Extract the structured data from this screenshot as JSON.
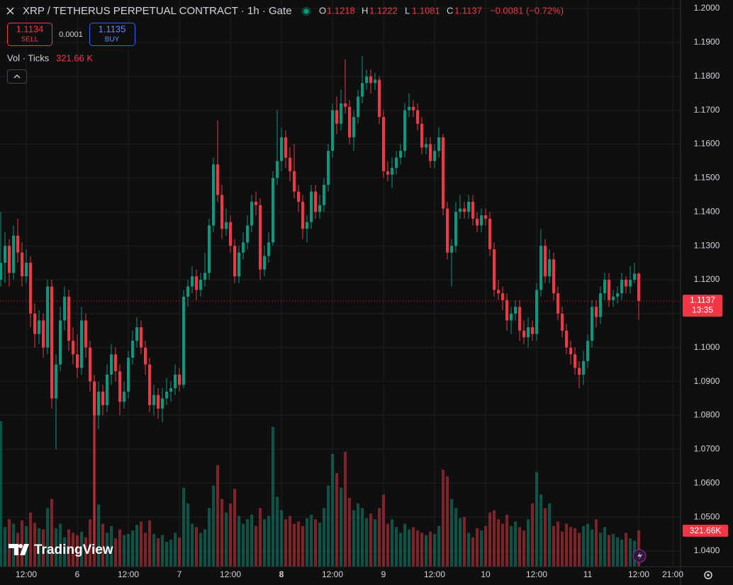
{
  "header": {
    "symbol": "XRP / TETHERUS PERPETUAL CONTRACT · 1h · Gate",
    "o_label": "O",
    "open": "1.1218",
    "h_label": "H",
    "high": "1.1222",
    "l_label": "L",
    "low": "1.1081",
    "c_label": "C",
    "close": "1.1137",
    "change": "−0.0081 (−0.72%)"
  },
  "trade": {
    "sell_price": "1.1134",
    "sell": "SELL",
    "spread": "0.0001",
    "buy_price": "1.1135",
    "buy": "BUY"
  },
  "volume_legend": {
    "label": "Vol · Ticks",
    "value": "321.66 K"
  },
  "brand": "TradingView",
  "chart_data": {
    "type": "candlestick",
    "up_color": "#089981",
    "down_color": "#f23645",
    "grid": true,
    "candles": [
      [
        1.12,
        1.14,
        1.118,
        1.125
      ],
      [
        1.125,
        1.134,
        1.119,
        1.13
      ],
      [
        1.13,
        1.132,
        1.118,
        1.122
      ],
      [
        1.122,
        1.136,
        1.12,
        1.133
      ],
      [
        1.133,
        1.138,
        1.125,
        1.128
      ],
      [
        1.128,
        1.131,
        1.118,
        1.121
      ],
      [
        1.121,
        1.129,
        1.119,
        1.125
      ],
      [
        1.125,
        1.127,
        1.106,
        1.11
      ],
      [
        1.11,
        1.113,
        1.1,
        1.104
      ],
      [
        1.104,
        1.111,
        1.101,
        1.108
      ],
      [
        1.108,
        1.11,
        1.097,
        1.1
      ],
      [
        1.1,
        1.12,
        1.098,
        1.118
      ],
      [
        1.118,
        1.12,
        1.082,
        1.085
      ],
      [
        1.085,
        1.098,
        1.07,
        1.095
      ],
      [
        1.095,
        1.112,
        1.093,
        1.108
      ],
      [
        1.108,
        1.118,
        1.105,
        1.115
      ],
      [
        1.115,
        1.117,
        1.099,
        1.102
      ],
      [
        1.102,
        1.106,
        1.095,
        1.098
      ],
      [
        1.098,
        1.104,
        1.091,
        1.094
      ],
      [
        1.094,
        1.112,
        1.092,
        1.108
      ],
      [
        1.108,
        1.11,
        1.097,
        1.1
      ],
      [
        1.1,
        1.102,
        1.087,
        1.09
      ],
      [
        1.09,
        1.092,
        1.04,
        1.08
      ],
      [
        1.08,
        1.09,
        1.076,
        1.087
      ],
      [
        1.087,
        1.089,
        1.08,
        1.083
      ],
      [
        1.083,
        1.095,
        1.081,
        1.092
      ],
      [
        1.092,
        1.101,
        1.089,
        1.098
      ],
      [
        1.098,
        1.1,
        1.09,
        1.093
      ],
      [
        1.093,
        1.095,
        1.08,
        1.084
      ],
      [
        1.084,
        1.09,
        1.082,
        1.087
      ],
      [
        1.087,
        1.099,
        1.085,
        1.097
      ],
      [
        1.097,
        1.105,
        1.095,
        1.102
      ],
      [
        1.102,
        1.109,
        1.1,
        1.106
      ],
      [
        1.106,
        1.108,
        1.098,
        1.1
      ],
      [
        1.1,
        1.102,
        1.092,
        1.095
      ],
      [
        1.095,
        1.097,
        1.081,
        1.083
      ],
      [
        1.083,
        1.089,
        1.08,
        1.086
      ],
      [
        1.086,
        1.088,
        1.079,
        1.082
      ],
      [
        1.082,
        1.088,
        1.078,
        1.085
      ],
      [
        1.085,
        1.091,
        1.083,
        1.087
      ],
      [
        1.087,
        1.09,
        1.084,
        1.088
      ],
      [
        1.088,
        1.095,
        1.086,
        1.092
      ],
      [
        1.092,
        1.094,
        1.087,
        1.089
      ],
      [
        1.089,
        1.117,
        1.088,
        1.115
      ],
      [
        1.115,
        1.12,
        1.112,
        1.118
      ],
      [
        1.118,
        1.124,
        1.116,
        1.121
      ],
      [
        1.121,
        1.123,
        1.114,
        1.117
      ],
      [
        1.117,
        1.122,
        1.115,
        1.12
      ],
      [
        1.12,
        1.128,
        1.118,
        1.122
      ],
      [
        1.122,
        1.138,
        1.12,
        1.136
      ],
      [
        1.136,
        1.156,
        1.134,
        1.154
      ],
      [
        1.154,
        1.167,
        1.143,
        1.145
      ],
      [
        1.145,
        1.148,
        1.132,
        1.135
      ],
      [
        1.135,
        1.141,
        1.133,
        1.137
      ],
      [
        1.137,
        1.139,
        1.128,
        1.13
      ],
      [
        1.13,
        1.132,
        1.119,
        1.121
      ],
      [
        1.121,
        1.13,
        1.119,
        1.128
      ],
      [
        1.128,
        1.134,
        1.126,
        1.131
      ],
      [
        1.131,
        1.139,
        1.129,
        1.136
      ],
      [
        1.136,
        1.145,
        1.134,
        1.143
      ],
      [
        1.143,
        1.146,
        1.139,
        1.142
      ],
      [
        1.142,
        1.144,
        1.12,
        1.123
      ],
      [
        1.123,
        1.13,
        1.121,
        1.127
      ],
      [
        1.127,
        1.134,
        1.125,
        1.131
      ],
      [
        1.131,
        1.152,
        1.13,
        1.15
      ],
      [
        1.15,
        1.17,
        1.148,
        1.155
      ],
      [
        1.155,
        1.165,
        1.152,
        1.162
      ],
      [
        1.162,
        1.164,
        1.153,
        1.156
      ],
      [
        1.156,
        1.159,
        1.149,
        1.152
      ],
      [
        1.152,
        1.16,
        1.144,
        1.146
      ],
      [
        1.146,
        1.148,
        1.14,
        1.143
      ],
      [
        1.143,
        1.145,
        1.132,
        1.135
      ],
      [
        1.135,
        1.139,
        1.131,
        1.137
      ],
      [
        1.137,
        1.148,
        1.135,
        1.146
      ],
      [
        1.146,
        1.148,
        1.138,
        1.14
      ],
      [
        1.14,
        1.145,
        1.138,
        1.142
      ],
      [
        1.142,
        1.15,
        1.14,
        1.148
      ],
      [
        1.148,
        1.16,
        1.146,
        1.158
      ],
      [
        1.158,
        1.172,
        1.156,
        1.17
      ],
      [
        1.17,
        1.174,
        1.163,
        1.166
      ],
      [
        1.166,
        1.176,
        1.164,
        1.172
      ],
      [
        1.172,
        1.185,
        1.169,
        1.171
      ],
      [
        1.171,
        1.173,
        1.16,
        1.162
      ],
      [
        1.162,
        1.17,
        1.158,
        1.168
      ],
      [
        1.168,
        1.176,
        1.166,
        1.174
      ],
      [
        1.174,
        1.186,
        1.172,
        1.178
      ],
      [
        1.178,
        1.182,
        1.176,
        1.18
      ],
      [
        1.18,
        1.182,
        1.175,
        1.178
      ],
      [
        1.178,
        1.181,
        1.176,
        1.179
      ],
      [
        1.179,
        1.18,
        1.166,
        1.168
      ],
      [
        1.168,
        1.17,
        1.15,
        1.152
      ],
      [
        1.152,
        1.155,
        1.149,
        1.151
      ],
      [
        1.151,
        1.156,
        1.147,
        1.153
      ],
      [
        1.153,
        1.158,
        1.151,
        1.156
      ],
      [
        1.156,
        1.16,
        1.154,
        1.158
      ],
      [
        1.158,
        1.172,
        1.156,
        1.17
      ],
      [
        1.17,
        1.175,
        1.168,
        1.171
      ],
      [
        1.171,
        1.173,
        1.168,
        1.17
      ],
      [
        1.17,
        1.172,
        1.164,
        1.166
      ],
      [
        1.166,
        1.168,
        1.157,
        1.159
      ],
      [
        1.159,
        1.162,
        1.157,
        1.16
      ],
      [
        1.16,
        1.162,
        1.153,
        1.155
      ],
      [
        1.155,
        1.16,
        1.153,
        1.158
      ],
      [
        1.158,
        1.165,
        1.156,
        1.162
      ],
      [
        1.162,
        1.163,
        1.139,
        1.141
      ],
      [
        1.141,
        1.143,
        1.126,
        1.128
      ],
      [
        1.128,
        1.132,
        1.118,
        1.13
      ],
      [
        1.13,
        1.143,
        1.128,
        1.14
      ],
      [
        1.14,
        1.145,
        1.138,
        1.141
      ],
      [
        1.141,
        1.143,
        1.138,
        1.14
      ],
      [
        1.14,
        1.145,
        1.138,
        1.143
      ],
      [
        1.143,
        1.145,
        1.136,
        1.138
      ],
      [
        1.138,
        1.14,
        1.134,
        1.136
      ],
      [
        1.136,
        1.141,
        1.134,
        1.139
      ],
      [
        1.139,
        1.141,
        1.136,
        1.138
      ],
      [
        1.138,
        1.14,
        1.127,
        1.129
      ],
      [
        1.129,
        1.131,
        1.115,
        1.117
      ],
      [
        1.117,
        1.12,
        1.114,
        1.116
      ],
      [
        1.116,
        1.118,
        1.111,
        1.114
      ],
      [
        1.114,
        1.116,
        1.105,
        1.108
      ],
      [
        1.108,
        1.112,
        1.104,
        1.11
      ],
      [
        1.11,
        1.114,
        1.108,
        1.112
      ],
      [
        1.112,
        1.114,
        1.102,
        1.105
      ],
      [
        1.105,
        1.108,
        1.101,
        1.103
      ],
      [
        1.103,
        1.109,
        1.1,
        1.106
      ],
      [
        1.106,
        1.108,
        1.102,
        1.104
      ],
      [
        1.104,
        1.119,
        1.102,
        1.117
      ],
      [
        1.117,
        1.135,
        1.115,
        1.13
      ],
      [
        1.13,
        1.132,
        1.119,
        1.121
      ],
      [
        1.121,
        1.129,
        1.119,
        1.126
      ],
      [
        1.126,
        1.128,
        1.114,
        1.116
      ],
      [
        1.116,
        1.118,
        1.108,
        1.11
      ],
      [
        1.11,
        1.112,
        1.103,
        1.105
      ],
      [
        1.105,
        1.107,
        1.098,
        1.1
      ],
      [
        1.1,
        1.102,
        1.095,
        1.098
      ],
      [
        1.098,
        1.1,
        1.092,
        1.094
      ],
      [
        1.094,
        1.096,
        1.088,
        1.092
      ],
      [
        1.092,
        1.099,
        1.089,
        1.096
      ],
      [
        1.096,
        1.104,
        1.094,
        1.102
      ],
      [
        1.102,
        1.114,
        1.1,
        1.112
      ],
      [
        1.112,
        1.114,
        1.106,
        1.109
      ],
      [
        1.109,
        1.118,
        1.107,
        1.116
      ],
      [
        1.116,
        1.122,
        1.114,
        1.12
      ],
      [
        1.12,
        1.122,
        1.112,
        1.114
      ],
      [
        1.114,
        1.117,
        1.112,
        1.115
      ],
      [
        1.115,
        1.118,
        1.113,
        1.116
      ],
      [
        1.116,
        1.122,
        1.114,
        1.12
      ],
      [
        1.12,
        1.121,
        1.116,
        1.118
      ],
      [
        1.118,
        1.124,
        1.116,
        1.12
      ],
      [
        1.12,
        1.125,
        1.119,
        1.1218
      ],
      [
        1.1218,
        1.1222,
        1.1081,
        1.1137
      ]
    ],
    "volume": {
      "values": [
        1290,
        350,
        420,
        380,
        300,
        410,
        360,
        480,
        390,
        340,
        330,
        520,
        600,
        340,
        380,
        260,
        330,
        300,
        280,
        310,
        260,
        420,
        1540,
        550,
        380,
        300,
        360,
        250,
        330,
        280,
        290,
        320,
        370,
        400,
        300,
        410,
        290,
        250,
        280,
        220,
        240,
        300,
        260,
        700,
        560,
        380,
        350,
        300,
        330,
        520,
        720,
        900,
        600,
        480,
        560,
        690,
        450,
        380,
        420,
        460,
        360,
        520,
        420,
        450,
        1240,
        620,
        500,
        420,
        450,
        380,
        400,
        360,
        430,
        460,
        420,
        390,
        520,
        720,
        1000,
        830,
        700,
        1020,
        610,
        500,
        560,
        520,
        430,
        470,
        420,
        520,
        640,
        380,
        420,
        350,
        300,
        380,
        330,
        350,
        320,
        300,
        280,
        310,
        290,
        360,
        860,
        800,
        600,
        520,
        430,
        440,
        300,
        260,
        340,
        320,
        360,
        480,
        500,
        420,
        380,
        460,
        360,
        400,
        350,
        320,
        420,
        560,
        840,
        640,
        520,
        560,
        360,
        400,
        310,
        380,
        350,
        340,
        300,
        360,
        380,
        330,
        420,
        300,
        350,
        280,
        290,
        260,
        240,
        300,
        250,
        230,
        321.66
      ],
      "last_label": "321.66K"
    },
    "last_price": {
      "value": 1.1137,
      "label": "1.1137",
      "countdown": "13:35"
    },
    "ylim": [
      1.0354,
      1.2025
    ],
    "yticks": [
      {
        "value": 1.04,
        "label": "1.0400"
      },
      {
        "value": 1.05,
        "label": "1.0500"
      },
      {
        "value": 1.06,
        "label": "1.0600"
      },
      {
        "value": 1.07,
        "label": "1.0700"
      },
      {
        "value": 1.08,
        "label": "1.0800"
      },
      {
        "value": 1.09,
        "label": "1.0900"
      },
      {
        "value": 1.1,
        "label": "1.1000"
      },
      {
        "value": 1.11,
        "label": "1.1100"
      },
      {
        "value": 1.12,
        "label": "1.1200"
      },
      {
        "value": 1.13,
        "label": "1.1300"
      },
      {
        "value": 1.14,
        "label": "1.1400"
      },
      {
        "value": 1.15,
        "label": "1.1500"
      },
      {
        "value": 1.16,
        "label": "1.1600"
      },
      {
        "value": 1.17,
        "label": "1.1700"
      },
      {
        "value": 1.18,
        "label": "1.1800"
      },
      {
        "value": 1.19,
        "label": "1.1900"
      },
      {
        "value": 1.2,
        "label": "1.2000"
      }
    ],
    "xlim": [
      -0.17,
      159.83
    ],
    "xticks": [
      {
        "value": 6,
        "label": "12:00"
      },
      {
        "value": 18,
        "label": "6"
      },
      {
        "value": 30,
        "label": "12:00"
      },
      {
        "value": 42,
        "label": "7"
      },
      {
        "value": 54,
        "label": "12:00"
      },
      {
        "value": 66,
        "label": "8"
      },
      {
        "value": 78,
        "label": "12:00"
      },
      {
        "value": 90,
        "label": "9"
      },
      {
        "value": 102,
        "label": "12:00"
      },
      {
        "value": 114,
        "label": "10"
      },
      {
        "value": 126,
        "label": "12:00"
      },
      {
        "value": 138,
        "label": "11"
      },
      {
        "value": 150,
        "label": "12:00"
      },
      {
        "value": 158,
        "label": "21:00"
      }
    ]
  }
}
